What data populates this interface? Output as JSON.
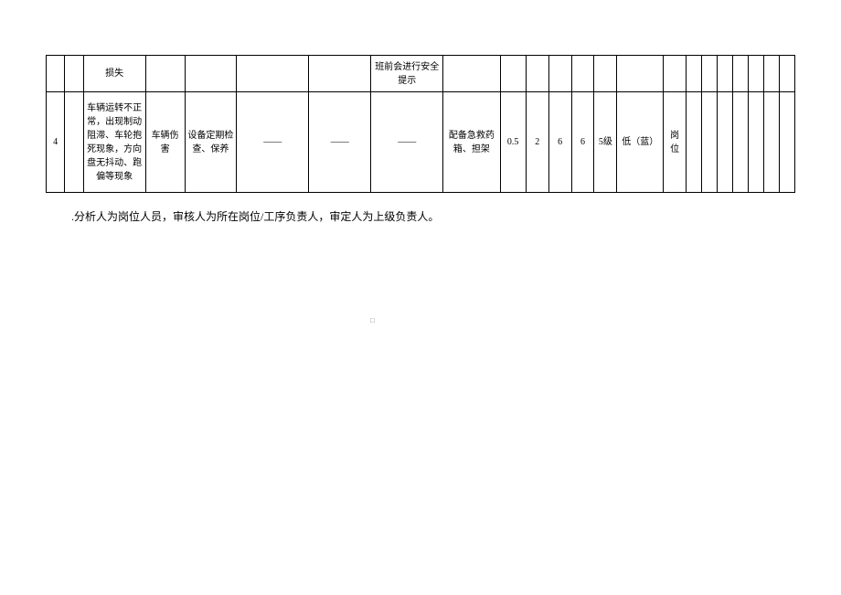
{
  "table": {
    "row1": {
      "c2": "损失",
      "c7": "班前会进行安全提示"
    },
    "row2": {
      "c0": "4",
      "c2": "车辆运转不正常，出现制动阻滞、车轮抱死现象，方向盘无抖动、跑偏等现象",
      "c3": "车辆伤害",
      "c4": "设备定期检查、保养",
      "c5": "——",
      "c6": "——",
      "c7": "——",
      "c8": "配备急救药箱、担架",
      "c9": "0.5",
      "c10": "2",
      "c11": "6",
      "c12": "6",
      "c13": "5级",
      "c14": "低（蓝）",
      "c15": "岗位"
    }
  },
  "note": ".分析人为岗位人员，审核人为所在岗位/工序负责人，审定人为上级负责人。",
  "dot": "□"
}
